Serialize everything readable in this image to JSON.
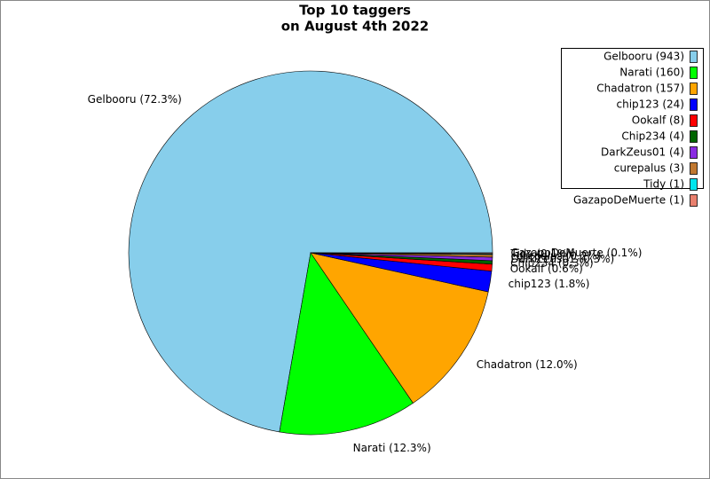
{
  "chart_data": {
    "type": "pie",
    "title": [
      "Top 10 taggers",
      "on August 4th 2022"
    ],
    "categories": [
      "Gelbooru",
      "Narati",
      "Chadatron",
      "chip123",
      "Ookalf",
      "Chip234",
      "DarkZeus01",
      "curepalus",
      "Tidy",
      "GazapoDeMuerte"
    ],
    "values": [
      943,
      160,
      157,
      24,
      8,
      4,
      4,
      3,
      1,
      1
    ],
    "value_labels": [
      "Gelbooru (72.3%)",
      "Narati (12.3%)",
      "Chadatron (12.0%)",
      "chip123 (1.8%)",
      "Ookalf (0.6%)",
      "Chip234 (0.3%)",
      "DarkZeus01 (0.3%)",
      "curepalus (0.2%)",
      "Tidy (0.1%)",
      "GazapoDeMuerte (0.1%)"
    ],
    "legend_labels": [
      "Gelbooru (943)",
      "Narati (160)",
      "Chadatron (157)",
      "chip123 (24)",
      "Ookalf (8)",
      "Chip234 (4)",
      "DarkZeus01 (4)",
      "curepalus (3)",
      "Tidy (1)",
      "GazapoDeMuerte (1)"
    ],
    "colors": [
      "#87ceeb",
      "#00ff00",
      "#ffa500",
      "#0000ff",
      "#ff0000",
      "#006400",
      "#8a2be2",
      "#c07830",
      "#00e5ee",
      "#e9806e"
    ],
    "legend": "upper right"
  }
}
